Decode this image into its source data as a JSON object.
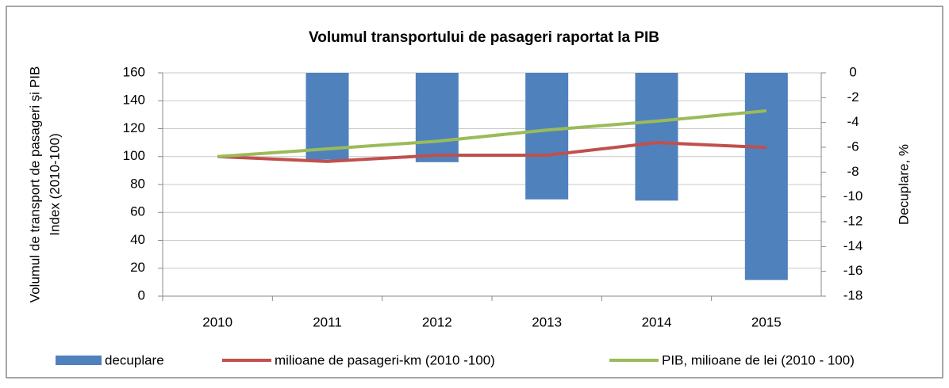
{
  "chart_data": {
    "type": "bar_line",
    "title": "Volumul transportului de pasageri raportat la PIB",
    "ylabel_lines": [
      "Volumul de transport de pasageri și PIB",
      "Index (2010-100)"
    ],
    "y2label": "Decuplare, %",
    "categories": [
      "2010",
      "2011",
      "2012",
      "2013",
      "2014",
      "2015"
    ],
    "series": [
      {
        "name": "decuplare",
        "type": "bar",
        "axis": "y2",
        "color": "#4f81bd",
        "values": [
          0,
          -7.0,
          -7.2,
          -10.2,
          -10.3,
          -16.7
        ]
      },
      {
        "name": "milioane de pasageri-km (2010 -100)",
        "type": "line",
        "color": "#c0504d",
        "values": [
          100,
          96.5,
          101,
          101,
          110,
          106.5
        ]
      },
      {
        "name": "PIB, milioane de lei (2010 - 100)",
        "type": "line",
        "color": "#9bbb59",
        "values": [
          100,
          105.5,
          111,
          119,
          125.4,
          132.8
        ]
      }
    ],
    "ylim": [
      0,
      160
    ],
    "yticks": [
      0,
      20,
      40,
      60,
      80,
      100,
      120,
      140,
      160
    ],
    "y2lim": [
      -18,
      0
    ],
    "y2ticks": [
      0,
      -2,
      -4,
      -6,
      -8,
      -10,
      -12,
      -14,
      -16,
      -18
    ],
    "grid": true,
    "legend": "bottom"
  }
}
